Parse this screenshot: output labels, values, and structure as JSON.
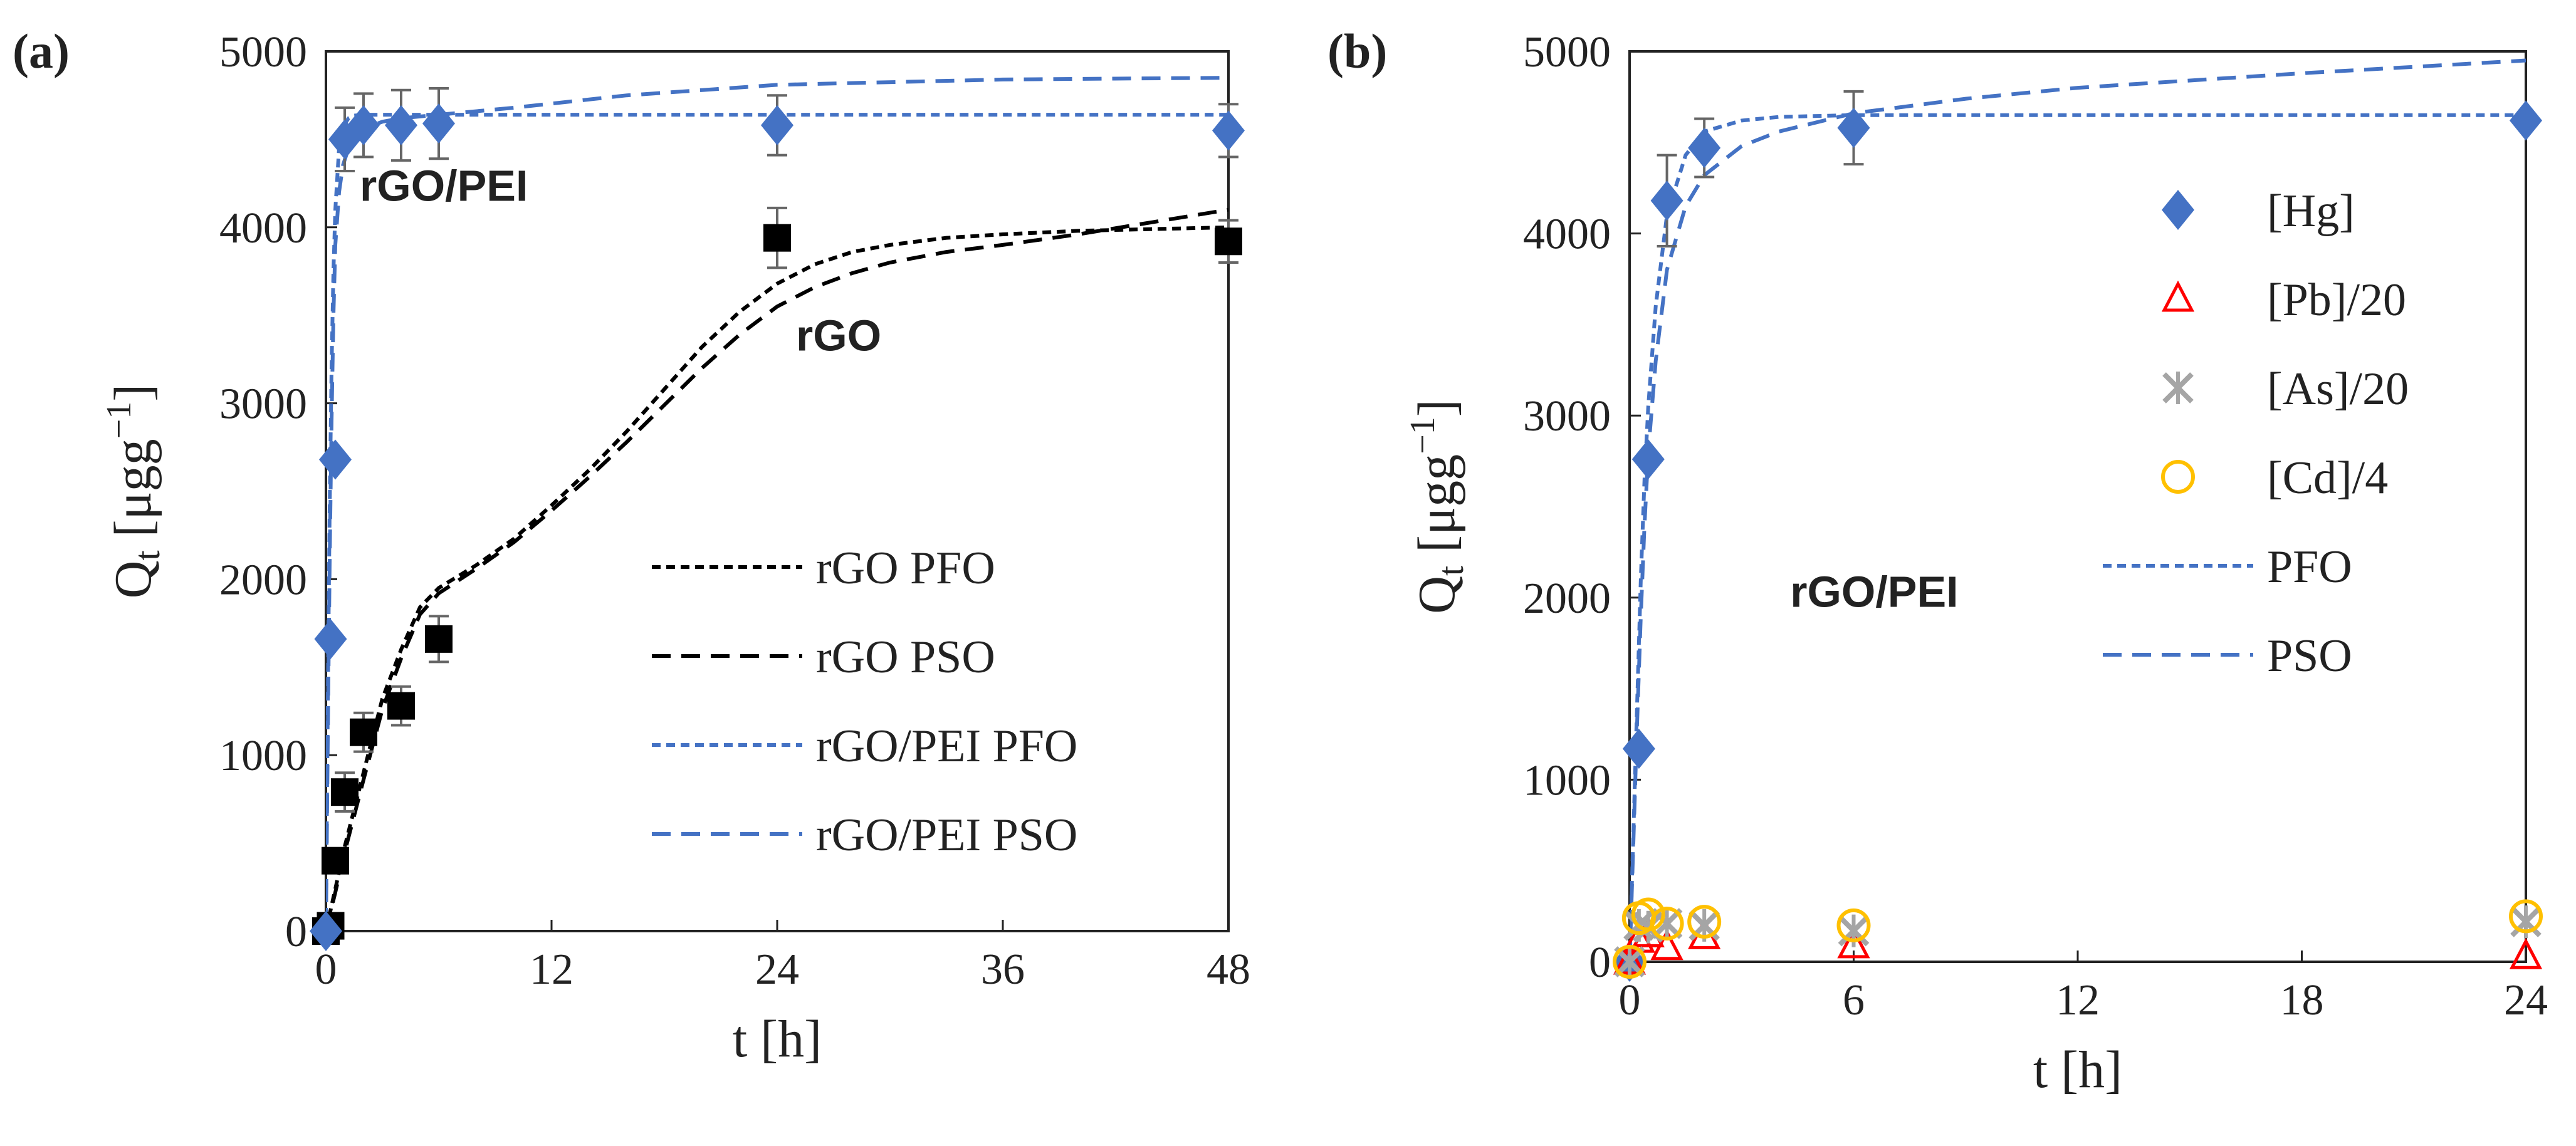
{
  "chart_data": [
    {
      "panel_label": "(a)",
      "type": "scatter",
      "xlabel": "t [h]",
      "ylabel": "Q_t [μgg⁻¹]",
      "ylabel_main": "Q",
      "ylabel_sub": "t",
      "ylabel_rest": " [μgg",
      "ylabel_sup": "−1",
      "ylabel_end": "]",
      "xlim": [
        0,
        48
      ],
      "ylim": [
        0,
        5000
      ],
      "xticks": [
        0,
        12,
        24,
        36,
        48
      ],
      "yticks": [
        0,
        1000,
        2000,
        3000,
        4000,
        5000
      ],
      "annotations": [
        {
          "text": "rGO/PEI",
          "x": 1.8,
          "y": 4150
        },
        {
          "text": "rGO",
          "x": 25,
          "y": 3300
        }
      ],
      "series": [
        {
          "name": "rGO",
          "kind": "points",
          "marker": "square",
          "color": "#000000",
          "x": [
            0,
            0.25,
            0.5,
            1,
            2,
            4,
            6,
            24,
            48
          ],
          "y": [
            0,
            30,
            400,
            790,
            1130,
            1280,
            1660,
            3940,
            3920
          ],
          "err": [
            0,
            0,
            0,
            110,
            110,
            110,
            130,
            170,
            120
          ]
        },
        {
          "name": "rGO/PEI",
          "kind": "points",
          "marker": "diamond",
          "color": "#4472C4",
          "x": [
            0,
            0.25,
            0.5,
            1,
            2,
            4,
            6,
            24,
            48
          ],
          "y": [
            0,
            1660,
            2680,
            4500,
            4580,
            4580,
            4590,
            4580,
            4550
          ],
          "err": [
            0,
            0,
            0,
            180,
            180,
            200,
            200,
            170,
            150
          ]
        },
        {
          "name": "rGO PFO",
          "kind": "line",
          "dash": "14,9",
          "color": "#000000",
          "x": [
            0,
            0.5,
            1,
            2,
            3,
            4,
            5,
            6,
            8,
            10,
            12,
            14,
            16,
            18,
            20,
            22,
            24,
            26,
            28,
            30,
            33,
            36,
            40,
            44,
            48
          ],
          "y": [
            0,
            240,
            480,
            900,
            1320,
            1600,
            1840,
            1950,
            2080,
            2230,
            2420,
            2620,
            2840,
            3080,
            3320,
            3520,
            3680,
            3790,
            3860,
            3900,
            3940,
            3960,
            3980,
            3990,
            4000
          ]
        },
        {
          "name": "rGO PSO",
          "kind": "line",
          "dash": "30,17",
          "color": "#000000",
          "x": [
            0,
            0.5,
            1,
            2,
            3,
            4,
            5,
            6,
            8,
            10,
            12,
            14,
            16,
            18,
            20,
            22,
            24,
            26,
            28,
            30,
            33,
            36,
            40,
            44,
            48
          ],
          "y": [
            0,
            220,
            450,
            860,
            1260,
            1550,
            1800,
            1920,
            2060,
            2210,
            2390,
            2580,
            2780,
            2990,
            3200,
            3390,
            3550,
            3660,
            3740,
            3800,
            3860,
            3900,
            3960,
            4030,
            4100
          ]
        },
        {
          "name": "rGO/PEI PFO",
          "kind": "line",
          "dash": "14,9",
          "color": "#4472C4",
          "x": [
            0,
            0.1,
            0.2,
            0.3,
            0.4,
            0.5,
            0.7,
            0.9,
            1.2,
            1.5,
            2,
            3,
            5,
            8,
            12,
            24,
            48
          ],
          "y": [
            0,
            1300,
            2400,
            3200,
            3750,
            4100,
            4450,
            4570,
            4620,
            4635,
            4640,
            4640,
            4640,
            4640,
            4640,
            4640,
            4640
          ]
        },
        {
          "name": "rGO/PEI PSO",
          "kind": "line",
          "dash": "30,17",
          "color": "#4472C4",
          "x": [
            0,
            0.1,
            0.2,
            0.3,
            0.4,
            0.5,
            0.7,
            0.9,
            1.2,
            1.5,
            2,
            3,
            4,
            6,
            10,
            16,
            24,
            36,
            48
          ],
          "y": [
            0,
            1100,
            2100,
            2900,
            3500,
            3900,
            4200,
            4350,
            4450,
            4510,
            4560,
            4600,
            4620,
            4640,
            4680,
            4750,
            4810,
            4840,
            4850
          ]
        }
      ],
      "legend": [
        {
          "label": "rGO PFO",
          "series": 2
        },
        {
          "label": "rGO PSO",
          "series": 3
        },
        {
          "label": "rGO/PEI PFO",
          "series": 4
        },
        {
          "label": "rGO/PEI PSO",
          "series": 5
        }
      ]
    },
    {
      "panel_label": "(b)",
      "type": "scatter",
      "xlabel": "t [h]",
      "ylabel": "Q_t [μgg⁻¹]",
      "ylabel_main": "Q",
      "ylabel_sub": "t",
      "ylabel_rest": " [μgg",
      "ylabel_sup": "−1",
      "ylabel_end": "]",
      "xlim": [
        0,
        24
      ],
      "ylim": [
        0,
        5000
      ],
      "xticks": [
        0,
        6,
        12,
        18,
        24
      ],
      "yticks": [
        0,
        1000,
        2000,
        3000,
        4000,
        5000
      ],
      "annotations": [
        {
          "text": "rGO/PEI",
          "x": 4.3,
          "y": 1950
        }
      ],
      "series": [
        {
          "name": "[Hg]",
          "kind": "points",
          "marker": "diamond",
          "color": "#4472C4",
          "x": [
            0,
            0.25,
            0.5,
            1,
            2,
            6,
            24
          ],
          "y": [
            0,
            1170,
            2760,
            4180,
            4470,
            4580,
            4620
          ],
          "err": [
            0,
            0,
            0,
            250,
            160,
            200,
            0
          ]
        },
        {
          "name": "[Pb]/20",
          "kind": "points",
          "marker": "triangle",
          "color": "#FF0000",
          "x": [
            0,
            0.25,
            0.5,
            1,
            2,
            6,
            24
          ],
          "y": [
            0,
            120,
            150,
            80,
            140,
            90,
            30
          ],
          "err": [
            0,
            0,
            0,
            0,
            0,
            0,
            0
          ]
        },
        {
          "name": "[As]/20",
          "kind": "points",
          "marker": "star",
          "color": "#A5A5A5",
          "x": [
            0,
            0.25,
            0.5,
            1,
            2,
            6,
            24
          ],
          "y": [
            0,
            200,
            190,
            210,
            200,
            170,
            220
          ],
          "err": [
            0,
            0,
            0,
            0,
            0,
            0,
            0
          ]
        },
        {
          "name": "[Cd]/4",
          "kind": "points",
          "marker": "circle",
          "color": "#FFC000",
          "x": [
            0,
            0.25,
            0.5,
            1,
            2,
            6,
            24
          ],
          "y": [
            0,
            240,
            260,
            210,
            220,
            200,
            250
          ],
          "err": [
            0,
            0,
            0,
            0,
            0,
            0,
            0
          ]
        },
        {
          "name": "PFO",
          "kind": "line",
          "dash": "14,9",
          "color": "#4472C4",
          "x": [
            0,
            0.1,
            0.2,
            0.3,
            0.4,
            0.5,
            0.7,
            1,
            1.5,
            2,
            3,
            4,
            6,
            12,
            24
          ],
          "y": [
            0,
            700,
            1400,
            2100,
            2650,
            3050,
            3600,
            4100,
            4430,
            4560,
            4620,
            4640,
            4650,
            4650,
            4650
          ]
        },
        {
          "name": "PSO",
          "kind": "line",
          "dash": "30,17",
          "color": "#4472C4",
          "x": [
            0,
            0.1,
            0.2,
            0.3,
            0.4,
            0.5,
            0.7,
            1,
            1.5,
            2,
            3,
            4,
            6,
            9,
            12,
            18,
            24
          ],
          "y": [
            0,
            650,
            1300,
            1900,
            2400,
            2800,
            3300,
            3800,
            4150,
            4320,
            4480,
            4560,
            4660,
            4740,
            4800,
            4880,
            4950
          ]
        }
      ],
      "legend": [
        {
          "label": "[Hg]",
          "series": 0
        },
        {
          "label": "[Pb]/20",
          "series": 1
        },
        {
          "label": "[As]/20",
          "series": 2
        },
        {
          "label": "[Cd]/4",
          "series": 3
        },
        {
          "label": "PFO",
          "series": 4
        },
        {
          "label": "PSO",
          "series": 5
        }
      ]
    }
  ]
}
